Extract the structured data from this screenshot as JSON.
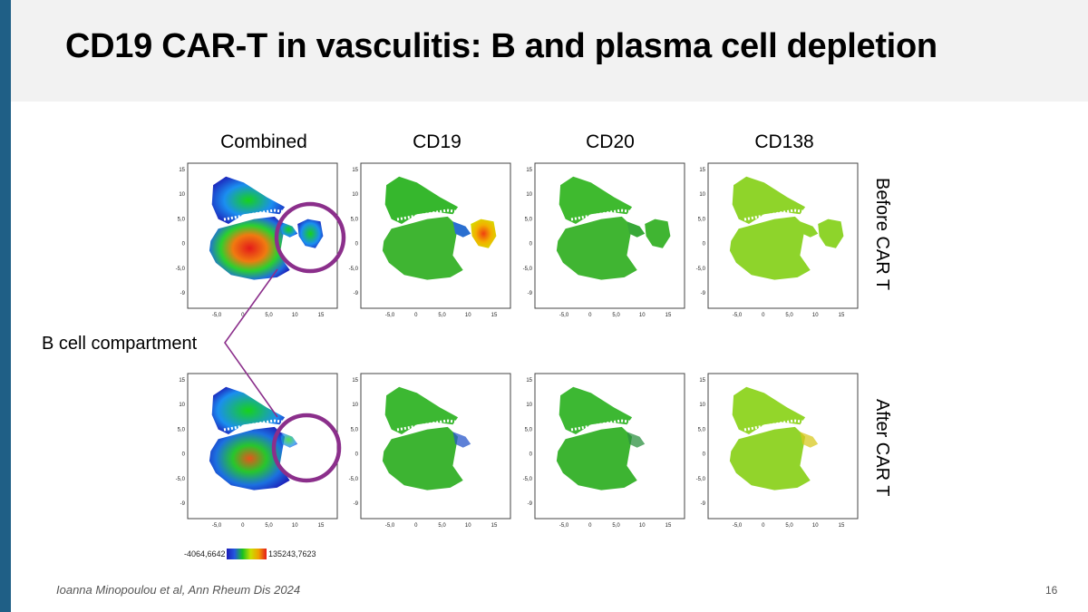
{
  "title": "CD19 CAR-T in vasculitis: B and plasma cell depletion",
  "columns": [
    "Combined",
    "CD19",
    "CD20",
    "CD138"
  ],
  "rows": [
    "Before CAR T",
    "After CAR T"
  ],
  "annotation": "B cell compartment",
  "citation": "Ioanna Minopoulou et al, Ann Rheum Dis 2024",
  "slide_number": "16",
  "color_scale": {
    "min_label": "-4064,6642",
    "max_label": "135243,7623"
  },
  "axes": {
    "x_ticks": [
      "-5,0",
      "0",
      "5,0",
      "10",
      "15"
    ],
    "y_ticks": [
      "15",
      "10",
      "5,0",
      "0",
      "-5,0",
      "-9"
    ]
  },
  "colors": {
    "accent_bar": "#1f5f86",
    "header_band": "#f2f2f2",
    "highlight_circle": "#8b2f8b"
  }
}
